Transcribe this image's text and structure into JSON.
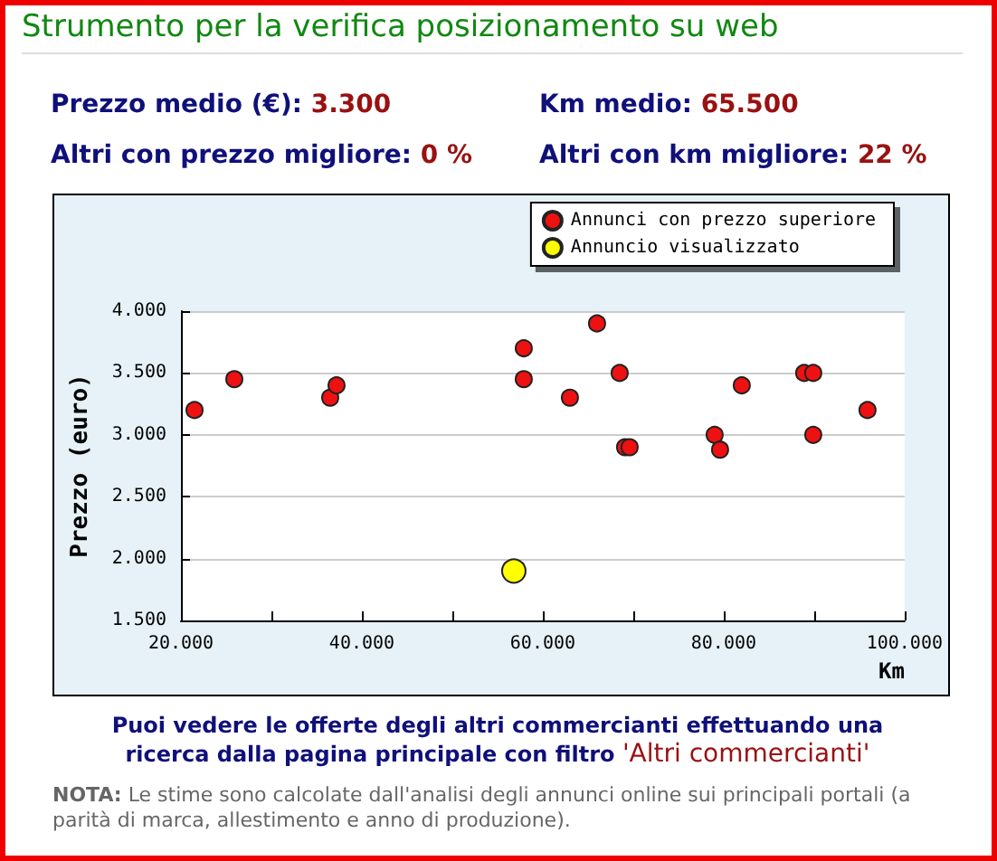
{
  "chart_data": {
    "type": "scatter",
    "title": "Strumento per la verifica posizionamento su web",
    "xlabel": "Km",
    "ylabel": "Prezzo (euro)",
    "annotations": [
      "Prezzo medio (€): 3.300",
      "Km medio: 65.500",
      "Altri con prezzo migliore: 0 %",
      "Altri con km migliore: 22 %",
      "Puoi vedere le offerte degli altri commercianti effettuando una ricerca dalla pagina principale con filtro 'Altri commercianti'",
      "NOTA: Le stime sono calcolate dall'analisi degli annunci online sui principali portali (a parità di marca, allestimento e anno di produzione)."
    ],
    "series": [
      {
        "name": "Annunci con prezzo superiore",
        "color": "#ee1111",
        "x": [
          21500,
          25900,
          36500,
          37200,
          57900,
          57900,
          66000,
          63000,
          68500,
          69100,
          69600,
          79000,
          79600,
          82000,
          88900,
          89900,
          89900,
          95900
        ],
        "values": [
          3200,
          3450,
          3300,
          3400,
          3700,
          3450,
          3900,
          3300,
          3500,
          2900,
          2900,
          3000,
          2880,
          3400,
          3500,
          3500,
          3000,
          3200
        ]
      },
      {
        "name": "Annuncio visualizzato",
        "color": "#ffff00",
        "x": [
          56800
        ],
        "values": [
          1900
        ]
      }
    ],
    "xlim": [
      20000,
      100000
    ],
    "xticks": [
      {
        "value": 20000,
        "label": "20.000"
      },
      {
        "value": 30000,
        "label": null
      },
      {
        "value": 40000,
        "label": "40.000"
      },
      {
        "value": 50000,
        "label": null
      },
      {
        "value": 60000,
        "label": "60.000"
      },
      {
        "value": 70000,
        "label": null
      },
      {
        "value": 80000,
        "label": "80.000"
      },
      {
        "value": 90000,
        "label": null
      },
      {
        "value": 100000,
        "label": "100.000"
      }
    ],
    "ylim": [
      1500,
      4000
    ],
    "yticks": [
      {
        "value": 1500,
        "label": "1.500"
      },
      {
        "value": 2000,
        "label": "2.000"
      },
      {
        "value": 2500,
        "label": "2.500"
      },
      {
        "value": 3000,
        "label": "3.000"
      },
      {
        "value": 3500,
        "label": "3.500"
      },
      {
        "value": 4000,
        "label": "4.000"
      }
    ],
    "grid": "y",
    "legend": "top right",
    "marker": "circle"
  }
}
